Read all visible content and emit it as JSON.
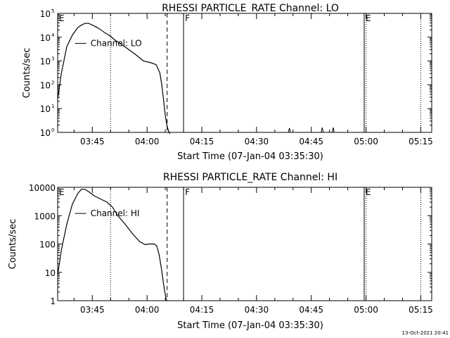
{
  "chart_data": [
    {
      "type": "line",
      "title": "RHESSI PARTICLE_RATE Channel: LO",
      "xlabel": "Start Time (07-Jan-04 03:35:30)",
      "ylabel": "Counts/sec",
      "yscale": "log",
      "ylim": [
        1,
        100000
      ],
      "xlim": [
        "03:35:30",
        "05:18:00"
      ],
      "x_ticks": [
        "03:45",
        "04:00",
        "04:15",
        "04:30",
        "04:45",
        "05:00",
        "05:15"
      ],
      "y_ticks": [
        {
          "value": 1,
          "base": "10",
          "exp": "0"
        },
        {
          "value": 10,
          "base": "10",
          "exp": "1"
        },
        {
          "value": 100,
          "base": "10",
          "exp": "2"
        },
        {
          "value": 1000,
          "base": "10",
          "exp": "3"
        },
        {
          "value": 10000,
          "base": "10",
          "exp": "4"
        },
        {
          "value": 100000,
          "base": "10",
          "exp": "5"
        }
      ],
      "legend": "Channel: LO",
      "legend_time": "03:44:30",
      "legend_value": 5500,
      "markers": [
        {
          "label": "E",
          "time": "03:35:30",
          "style": "solid"
        },
        {
          "label": "",
          "time": "03:50:00",
          "style": "dotted"
        },
        {
          "label": "",
          "time": "04:05:30",
          "style": "dashed"
        },
        {
          "label": "F",
          "time": "04:10:00",
          "style": "solid"
        },
        {
          "label": "E",
          "time": "04:59:30",
          "style": "solid"
        },
        {
          "label": "",
          "time": "05:00:00",
          "style": "dotted"
        },
        {
          "label": "",
          "time": "05:15:00",
          "style": "dotted"
        }
      ],
      "series": [
        {
          "x": [
            "03:35:30",
            "03:36:30",
            "03:38:00",
            "03:39:30",
            "03:41:00",
            "03:42:00",
            "03:43:00",
            "03:44:00",
            "03:45:30",
            "03:47:00",
            "03:48:30",
            "03:50:00",
            "03:51:00",
            "03:53:00",
            "03:55:00",
            "03:57:00",
            "03:59:00",
            "04:01:00",
            "04:02:30",
            "04:03:30",
            "04:04:00",
            "04:04:30",
            "04:05:00",
            "04:05:30",
            "04:06:00",
            "04:06:20"
          ],
          "y": [
            25,
            300,
            4000,
            12000,
            25000,
            32000,
            38000,
            38000,
            30000,
            22000,
            15000,
            11000,
            8000,
            5000,
            3000,
            1800,
            1000,
            850,
            700,
            320,
            110,
            25,
            5,
            1.8,
            1,
            0.9
          ]
        }
      ],
      "spikes": [
        {
          "time": "04:39:00",
          "value": 1.5
        },
        {
          "time": "04:48:00",
          "value": 1.6
        },
        {
          "time": "04:51:00",
          "value": 1.6
        }
      ]
    },
    {
      "type": "line",
      "title": "RHESSI PARTICLE_RATE Channel: HI",
      "xlabel": "Start Time (07-Jan-04 03:35:30)",
      "ylabel": "Counts/sec",
      "yscale": "log",
      "ylim": [
        1,
        10000
      ],
      "xlim": [
        "03:35:30",
        "05:18:00"
      ],
      "x_ticks": [
        "03:45",
        "04:00",
        "04:15",
        "04:30",
        "04:45",
        "05:00",
        "05:15"
      ],
      "y_ticks": [
        {
          "value": 1,
          "label": "1"
        },
        {
          "value": 10,
          "label": "10"
        },
        {
          "value": 100,
          "label": "100"
        },
        {
          "value": 1000,
          "label": "1000"
        },
        {
          "value": 10000,
          "label": "10000"
        }
      ],
      "legend": "Channel: HI",
      "legend_time": "03:44:30",
      "legend_value": 1200,
      "markers": [
        {
          "label": "E",
          "time": "03:35:30",
          "style": "solid"
        },
        {
          "label": "",
          "time": "03:50:00",
          "style": "dotted"
        },
        {
          "label": "",
          "time": "04:05:30",
          "style": "dashed"
        },
        {
          "label": "F",
          "time": "04:10:00",
          "style": "solid"
        },
        {
          "label": "E",
          "time": "04:59:30",
          "style": "solid"
        },
        {
          "label": "",
          "time": "05:00:00",
          "style": "dotted"
        },
        {
          "label": "",
          "time": "05:15:00",
          "style": "dotted"
        }
      ],
      "series": [
        {
          "x": [
            "03:35:30",
            "03:36:30",
            "03:38:00",
            "03:39:30",
            "03:41:00",
            "03:42:00",
            "03:43:00",
            "03:44:00",
            "03:45:30",
            "03:47:00",
            "03:49:00",
            "03:50:30",
            "03:52:00",
            "03:54:00",
            "03:56:00",
            "03:58:00",
            "03:59:30",
            "04:00:30",
            "04:02:00",
            "04:02:40",
            "04:03:20",
            "04:04:00",
            "04:04:30",
            "04:05:00",
            "04:05:20"
          ],
          "y": [
            8,
            60,
            500,
            2500,
            6000,
            8500,
            8500,
            7000,
            5000,
            4000,
            3000,
            2000,
            1000,
            500,
            230,
            120,
            95,
            100,
            100,
            85,
            40,
            12,
            4,
            1.6,
            1
          ]
        }
      ]
    }
  ],
  "footer": {
    "timestamp": "13-Oct-2021 20:41"
  }
}
